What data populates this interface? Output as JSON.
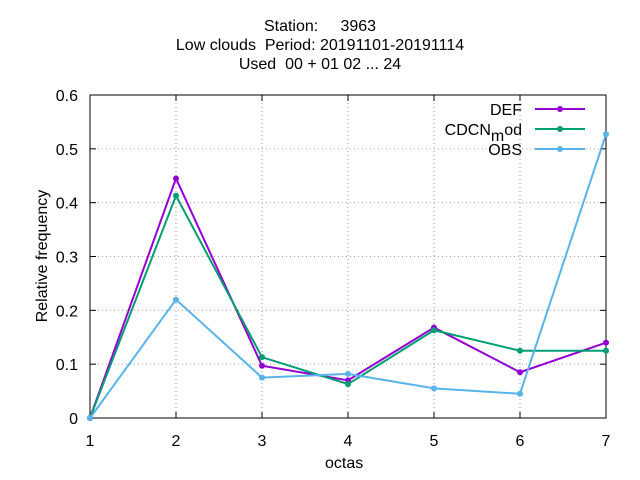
{
  "title": {
    "line1": "Station:     3963",
    "line2": "Low clouds  Period: 20191101-20191114",
    "line3": "Used  00 + 01 02 ... 24"
  },
  "chart_data": {
    "type": "line",
    "xlabel": "octas",
    "ylabel": "Relative frequency",
    "x": [
      1,
      2,
      3,
      4,
      5,
      6,
      7
    ],
    "xlim": [
      1,
      7
    ],
    "ylim": [
      0,
      0.6
    ],
    "xticks": [
      "1",
      "2",
      "3",
      "4",
      "5",
      "6",
      "7"
    ],
    "yticks": [
      "0",
      "0.1",
      "0.2",
      "0.3",
      "0.4",
      "0.5",
      "0.6"
    ],
    "grid": true,
    "legend_position": "top-right",
    "series": [
      {
        "name": "DEF",
        "color": "#9400d3",
        "values": [
          0,
          0.445,
          0.097,
          0.07,
          0.168,
          0.085,
          0.14
        ]
      },
      {
        "name": "CDCN_mod",
        "legend_main": "CDCN",
        "legend_sub": "m",
        "legend_tail": "od",
        "color": "#009e73",
        "values": [
          0,
          0.413,
          0.113,
          0.063,
          0.163,
          0.125,
          0.125
        ]
      },
      {
        "name": "OBS",
        "color": "#56b4e9",
        "values": [
          0,
          0.22,
          0.075,
          0.082,
          0.055,
          0.045,
          0.527
        ]
      }
    ]
  }
}
